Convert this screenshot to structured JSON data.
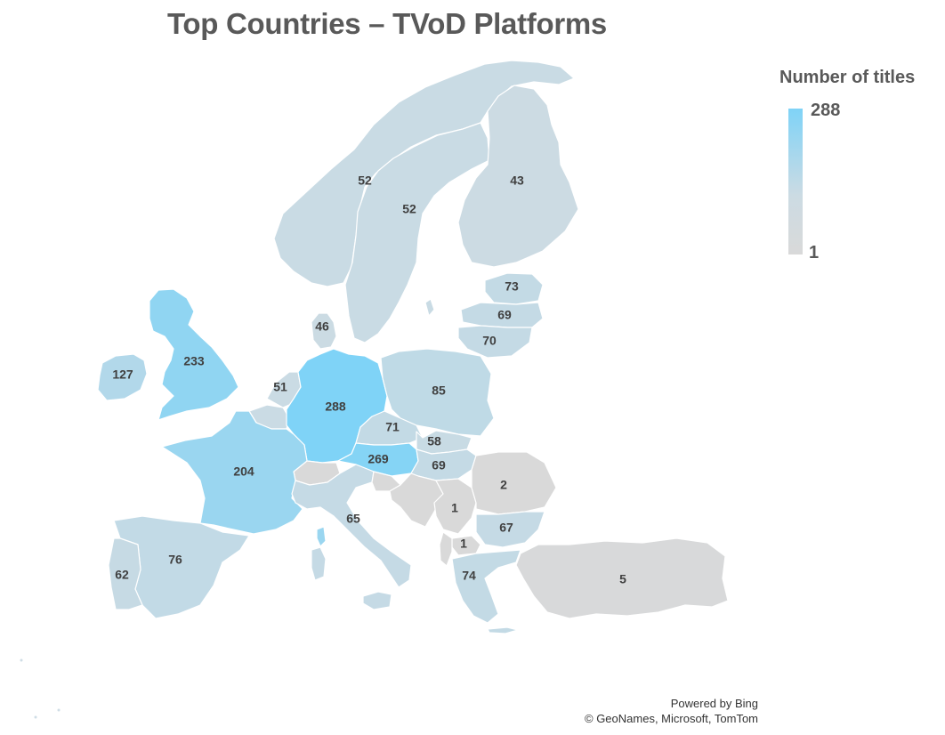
{
  "title": "Top Countries –  TVoD Platforms",
  "legend": {
    "title": "Number of titles",
    "max_label": "288",
    "min_label": "1",
    "min_value": 1,
    "max_value": 288,
    "color_min": "#d9d9d9",
    "color_max": "#7fd3f7"
  },
  "credits": {
    "line1": "Powered by Bing",
    "line2": "© GeoNames, Microsoft, TomTom"
  },
  "regions": [
    {
      "key": "norway",
      "value": 52,
      "label": "52"
    },
    {
      "key": "sweden",
      "value": 52,
      "label": "52"
    },
    {
      "key": "finland",
      "value": 43,
      "label": "43"
    },
    {
      "key": "estonia",
      "value": 73,
      "label": "73"
    },
    {
      "key": "latvia",
      "value": 69,
      "label": "69"
    },
    {
      "key": "lithuania",
      "value": 70,
      "label": "70"
    },
    {
      "key": "denmark",
      "value": 46,
      "label": "46"
    },
    {
      "key": "uk",
      "value": 233,
      "label": "233"
    },
    {
      "key": "ireland",
      "value": 127,
      "label": "127"
    },
    {
      "key": "netherlands",
      "value": 51,
      "label": "51"
    },
    {
      "key": "belgium",
      "value": 51,
      "label": ""
    },
    {
      "key": "germany",
      "value": 288,
      "label": "288"
    },
    {
      "key": "poland",
      "value": 85,
      "label": "85"
    },
    {
      "key": "czechia",
      "value": 71,
      "label": "71"
    },
    {
      "key": "slovakia",
      "value": 58,
      "label": "58"
    },
    {
      "key": "austria",
      "value": 269,
      "label": "269"
    },
    {
      "key": "hungary",
      "value": 69,
      "label": "69"
    },
    {
      "key": "france",
      "value": 204,
      "label": "204"
    },
    {
      "key": "switzerland",
      "value": 1,
      "label": ""
    },
    {
      "key": "italy",
      "value": 65,
      "label": "65"
    },
    {
      "key": "slovenia",
      "value": 1,
      "label": ""
    },
    {
      "key": "croatia",
      "value": 1,
      "label": ""
    },
    {
      "key": "serbia",
      "value": 1,
      "label": "1"
    },
    {
      "key": "romania",
      "value": 2,
      "label": "2"
    },
    {
      "key": "bulgaria",
      "value": 67,
      "label": "67"
    },
    {
      "key": "north_macedonia",
      "value": 1,
      "label": "1"
    },
    {
      "key": "greece",
      "value": 74,
      "label": "74"
    },
    {
      "key": "turkey",
      "value": 5,
      "label": "5"
    },
    {
      "key": "spain",
      "value": 76,
      "label": "76"
    },
    {
      "key": "portugal",
      "value": 62,
      "label": "62"
    }
  ]
}
